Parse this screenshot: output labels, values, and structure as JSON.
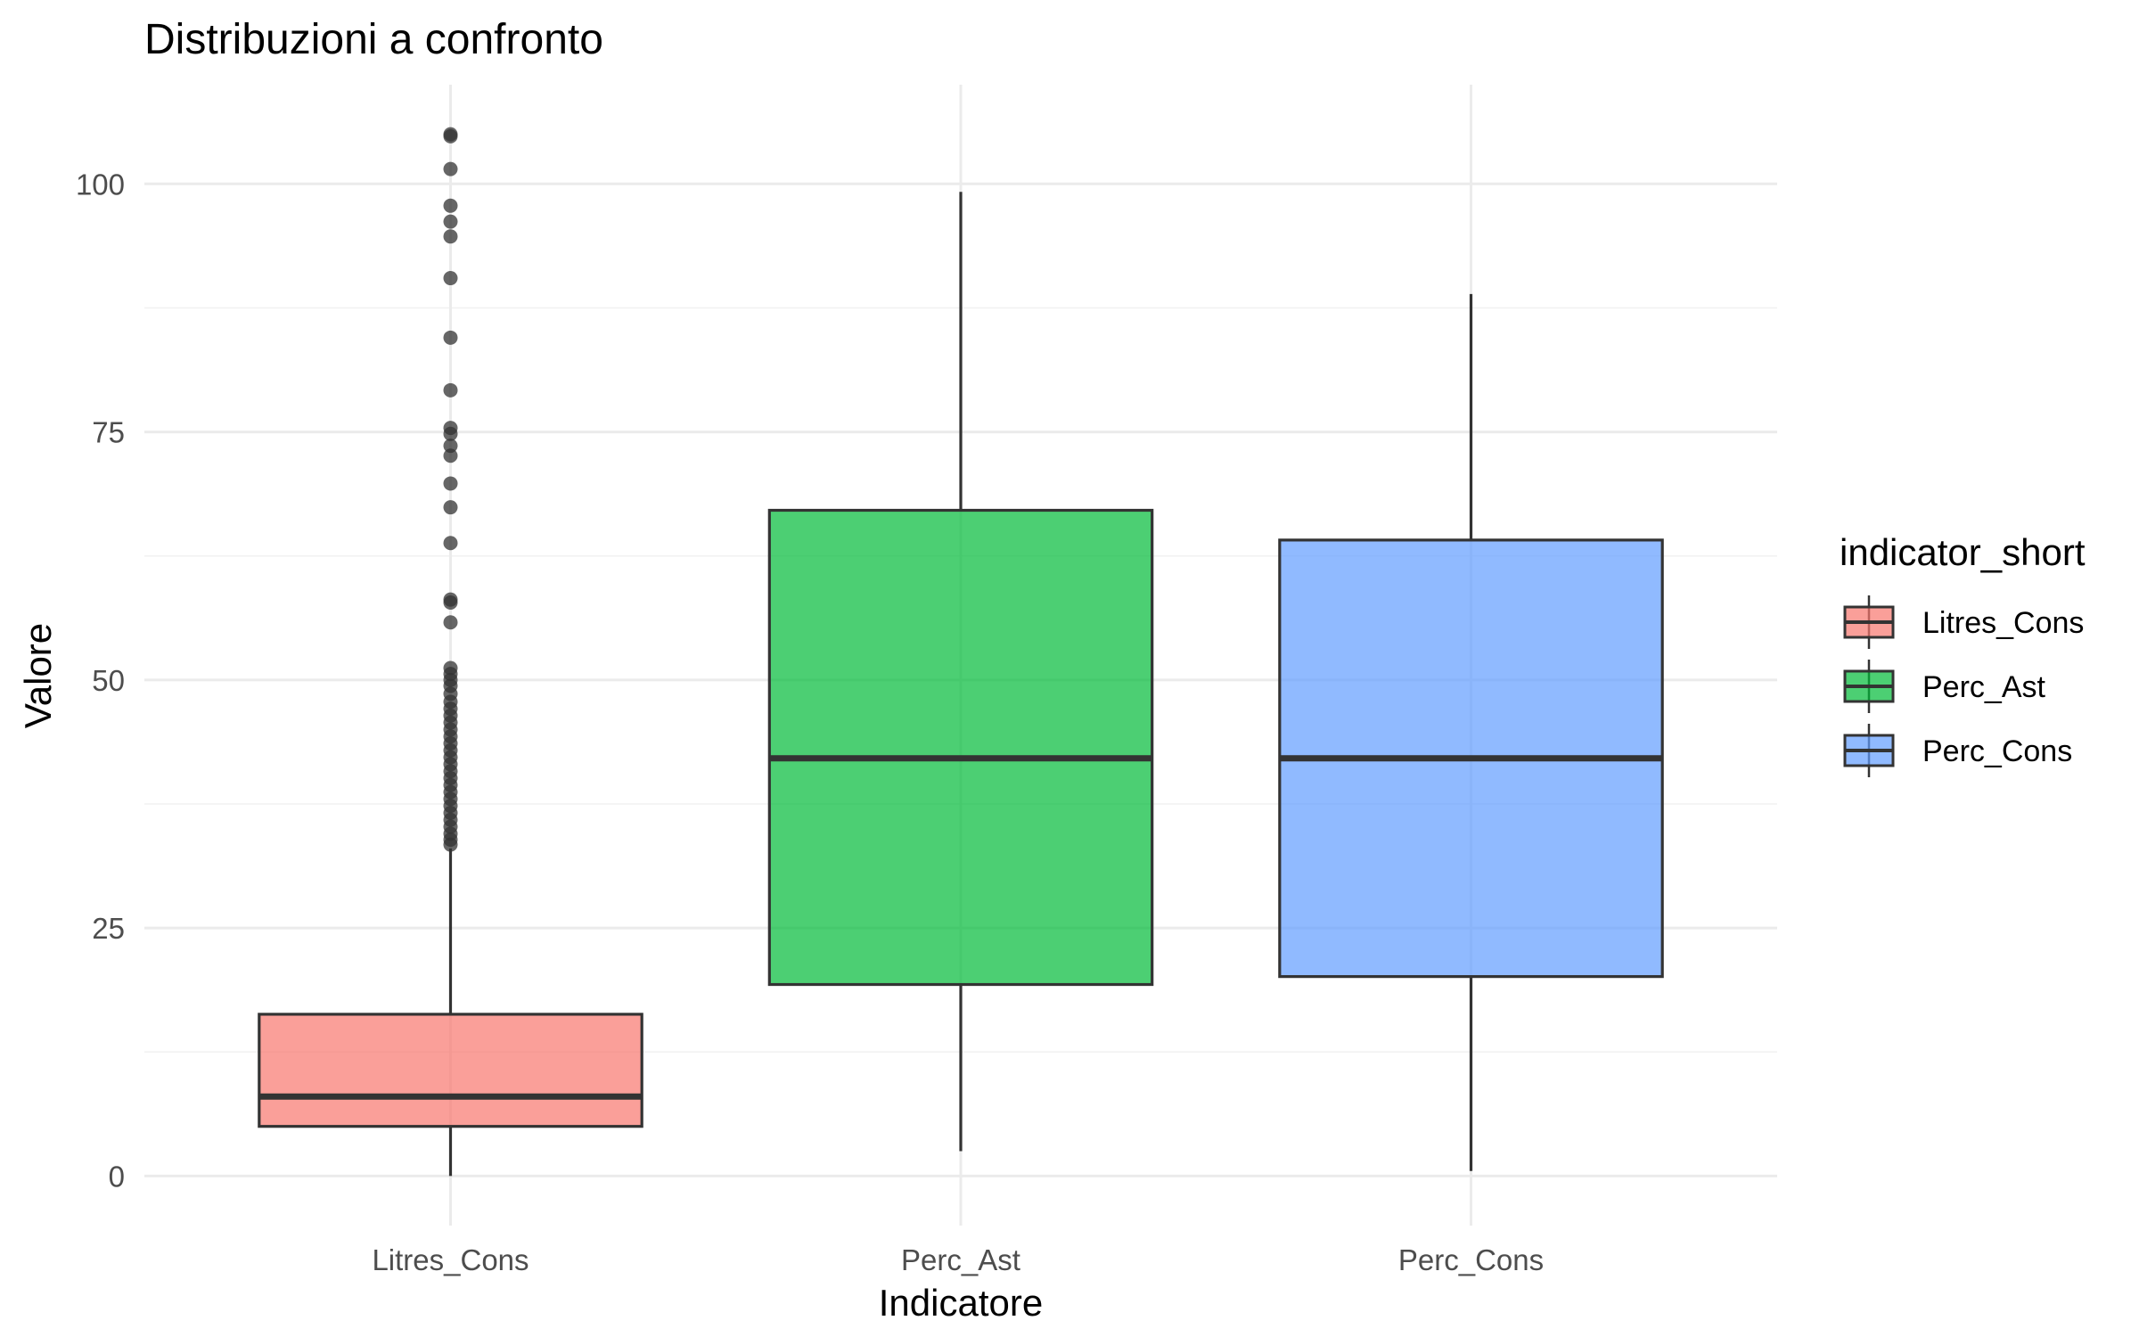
{
  "chart_data": {
    "type": "boxplot",
    "title": "Distribuzioni a confronto",
    "xlabel": "Indicatore",
    "ylabel": "Valore",
    "ylim": [
      -5,
      110
    ],
    "yticks": [
      0,
      25,
      50,
      75,
      100
    ],
    "ytick_labels": [
      "0",
      "25",
      "50",
      "75",
      "100"
    ],
    "minor_yticks": [
      12.5,
      37.5,
      62.5,
      87.5
    ],
    "grid": true,
    "legend": {
      "title": "indicator_short",
      "position": "right",
      "entries": [
        "Litres_Cons",
        "Perc_Ast",
        "Perc_Cons"
      ]
    },
    "series": [
      {
        "name": "Litres_Cons",
        "color": "#F8766D",
        "whisker_low": 0,
        "q1": 5,
        "median": 8,
        "q3": 16.3,
        "whisker_high": 33,
        "outliers": [
          105,
          104.8,
          101.5,
          97.8,
          96.2,
          94.7,
          90.5,
          84.5,
          79.2,
          75.4,
          74.8,
          73.6,
          72.6,
          69.8,
          67.4,
          63.8,
          58.1,
          57.8,
          55.8,
          51.2,
          50.6,
          50,
          49.4,
          48.6,
          47.8,
          47.1,
          46.4,
          45.7,
          45,
          44.3,
          43.6,
          42.9,
          42.2,
          41.5,
          40.8,
          40.1,
          39.4,
          38.7,
          38,
          37.3,
          36.6,
          35.9,
          35.2,
          34.5,
          33.9,
          33.4
        ]
      },
      {
        "name": "Perc_Ast",
        "color": "#00BA38",
        "whisker_low": 2.5,
        "q1": 19.3,
        "median": 42.1,
        "q3": 67.1,
        "whisker_high": 99.2,
        "outliers": []
      },
      {
        "name": "Perc_Cons",
        "color": "#619CFF",
        "whisker_low": 0.5,
        "q1": 20.1,
        "median": 42.1,
        "q3": 64.1,
        "whisker_high": 88.9,
        "outliers": []
      }
    ]
  }
}
